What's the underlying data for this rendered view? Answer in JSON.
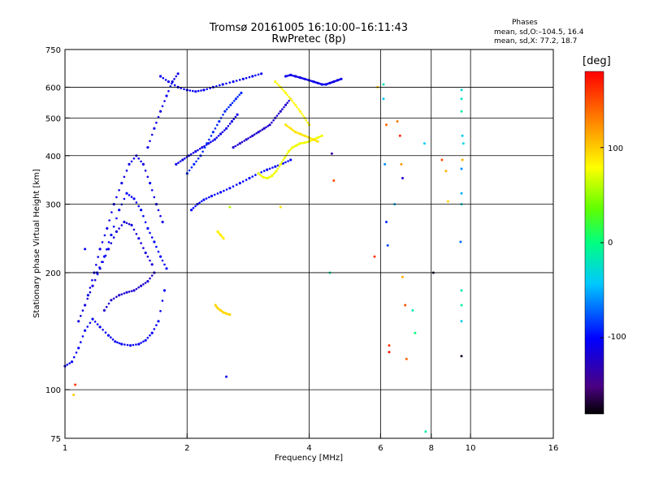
{
  "header": {
    "title_line1": "Tromsø 20161005 16:10:00–16:11:43",
    "title_line2": "RwPretec (8p)"
  },
  "phases": {
    "title": "Phases",
    "line_o": "mean, sd,O:–104.5, 16.4",
    "line_x": "mean, sd,X:  77.2, 18.7"
  },
  "colorbar": {
    "label": "[deg]",
    "ticks": [
      "100",
      "0",
      "-100"
    ],
    "tick_values": [
      100,
      0,
      -100
    ],
    "range": [
      -180,
      180
    ]
  },
  "chart_data": {
    "type": "scatter",
    "title": "Tromsø 20161005 16:10:00–16:11:43 RwPretec (8p)",
    "xlabel": "Frequency [MHz]",
    "ylabel": "Stationary phase Virtual Height [km]",
    "x_scale": "log",
    "y_scale": "log",
    "xlim": [
      1,
      16
    ],
    "ylim": [
      75,
      750
    ],
    "x_ticks": [
      1,
      2,
      4,
      6,
      8,
      10,
      16
    ],
    "x_tick_labels": [
      "1",
      "2",
      "4",
      "6",
      "8",
      "10",
      "16"
    ],
    "y_ticks": [
      75,
      100,
      200,
      300,
      400,
      500,
      600,
      750
    ],
    "y_tick_labels": [
      "75",
      "100",
      "200",
      "300",
      "400",
      "500",
      "600",
      "750"
    ],
    "grid": true,
    "grid_x": [
      2,
      4,
      6,
      8,
      10
    ],
    "grid_y": [
      100,
      200,
      300,
      400,
      500,
      600
    ],
    "color_by": "phase [deg]",
    "traces": [
      {
        "x": [
          1.0,
          1.04,
          1.08,
          1.12,
          1.17,
          1.22,
          1.28,
          1.33,
          1.38,
          1.45,
          1.52,
          1.58,
          1.64,
          1.7,
          1.76
        ],
        "y": [
          115,
          118,
          128,
          142,
          152,
          145,
          138,
          133,
          131,
          130,
          131,
          134,
          140,
          150,
          180
        ],
        "phase": -105
      },
      {
        "x": [
          1.08,
          1.12,
          1.17,
          1.22,
          1.28,
          1.34,
          1.4,
          1.46,
          1.52,
          1.58,
          1.64
        ],
        "y": [
          150,
          165,
          185,
          205,
          230,
          255,
          270,
          265,
          245,
          225,
          210
        ],
        "phase": -115
      },
      {
        "x": [
          1.14,
          1.18,
          1.22,
          1.27,
          1.32,
          1.38,
          1.44,
          1.5,
          1.56,
          1.62,
          1.68,
          1.74
        ],
        "y": [
          175,
          200,
          230,
          260,
          300,
          340,
          380,
          400,
          380,
          340,
          300,
          270
        ],
        "phase": -110
      },
      {
        "x": [
          1.2,
          1.25,
          1.3,
          1.36,
          1.42,
          1.48,
          1.54,
          1.6,
          1.66,
          1.72,
          1.78
        ],
        "y": [
          200,
          220,
          250,
          290,
          320,
          310,
          290,
          260,
          240,
          220,
          205
        ],
        "phase": -100
      },
      {
        "x": [
          1.25,
          1.3,
          1.36,
          1.42,
          1.48,
          1.54,
          1.6,
          1.66
        ],
        "y": [
          160,
          170,
          175,
          178,
          180,
          185,
          190,
          200
        ],
        "phase": -120
      },
      {
        "x": [
          1.6,
          1.66,
          1.72,
          1.78,
          1.84,
          1.9
        ],
        "y": [
          420,
          470,
          520,
          570,
          620,
          650
        ],
        "phase": -110
      },
      {
        "x": [
          1.72,
          1.8,
          1.9,
          2.0,
          2.1,
          2.2,
          2.32,
          2.45,
          2.6,
          2.75,
          2.9,
          3.05
        ],
        "y": [
          640,
          620,
          600,
          590,
          585,
          590,
          600,
          610,
          620,
          630,
          640,
          650
        ],
        "phase": -105
      },
      {
        "x": [
          2.05,
          2.12,
          2.2,
          2.3,
          2.42,
          2.55,
          2.7,
          2.85,
          3.0,
          3.15,
          3.3,
          3.45,
          3.6
        ],
        "y": [
          290,
          300,
          308,
          315,
          322,
          330,
          340,
          350,
          360,
          368,
          375,
          382,
          390
        ],
        "phase": -100
      },
      {
        "x": [
          1.88,
          1.95,
          2.02,
          2.1,
          2.18,
          2.26,
          2.34,
          2.42,
          2.5,
          2.58,
          2.66
        ],
        "y": [
          380,
          390,
          400,
          410,
          420,
          430,
          440,
          455,
          470,
          490,
          510
        ],
        "phase": -110
      },
      {
        "x": [
          2.0,
          2.08,
          2.16,
          2.24,
          2.32,
          2.4,
          2.48,
          2.56,
          2.64,
          2.72
        ],
        "y": [
          360,
          380,
          400,
          430,
          460,
          490,
          520,
          540,
          560,
          580
        ],
        "phase": -90
      },
      {
        "x": [
          2.6,
          2.7,
          2.8,
          2.9,
          3.0,
          3.1,
          3.2,
          3.3,
          3.4,
          3.5,
          3.6
        ],
        "y": [
          420,
          430,
          440,
          450,
          460,
          470,
          480,
          500,
          520,
          540,
          560
        ],
        "phase": -120
      },
      {
        "x": [
          3.0,
          3.08,
          3.16,
          3.24,
          3.32,
          3.4,
          3.48,
          3.56,
          3.64,
          3.72,
          3.8,
          3.9,
          4.0,
          4.1,
          4.2,
          4.3
        ],
        "y": [
          360,
          352,
          350,
          355,
          365,
          380,
          395,
          410,
          420,
          425,
          430,
          432,
          435,
          440,
          445,
          450
        ],
        "phase": 75
      },
      {
        "x": [
          3.3,
          3.4,
          3.5,
          3.6,
          3.7,
          3.8,
          3.9,
          4.0
        ],
        "y": [
          620,
          600,
          580,
          560,
          540,
          520,
          500,
          480
        ],
        "phase": 80
      },
      {
        "x": [
          3.5,
          3.6,
          3.7,
          3.8,
          3.9,
          4.0,
          4.1,
          4.2
        ],
        "y": [
          480,
          470,
          460,
          455,
          450,
          445,
          440,
          435
        ],
        "phase": 90
      },
      {
        "x": [
          3.5,
          3.6,
          3.7,
          3.8,
          3.9,
          4.0,
          4.1,
          4.2,
          4.3,
          4.4,
          4.5,
          4.6,
          4.7,
          4.8
        ],
        "y": [
          640,
          645,
          640,
          635,
          630,
          625,
          620,
          615,
          610,
          610,
          615,
          620,
          625,
          630
        ],
        "phase": -110
      },
      {
        "x": [
          2.35,
          2.38,
          2.42,
          2.46,
          2.5,
          2.55
        ],
        "y": [
          165,
          162,
          160,
          158,
          157,
          156
        ],
        "phase": 95
      },
      {
        "x": [
          2.38,
          2.42,
          2.46
        ],
        "y": [
          255,
          250,
          245
        ],
        "phase": 85
      }
    ],
    "points": [
      {
        "x": 1.05,
        "y": 97,
        "phase": 100
      },
      {
        "x": 1.06,
        "y": 103,
        "phase": 160
      },
      {
        "x": 1.12,
        "y": 230,
        "phase": -105
      },
      {
        "x": 2.5,
        "y": 108,
        "phase": -110
      },
      {
        "x": 2.55,
        "y": 295,
        "phase": 60
      },
      {
        "x": 3.4,
        "y": 295,
        "phase": 90
      },
      {
        "x": 4.5,
        "y": 200,
        "phase": -10
      },
      {
        "x": 4.6,
        "y": 345,
        "phase": 150
      },
      {
        "x": 4.55,
        "y": 405,
        "phase": -140
      },
      {
        "x": 5.8,
        "y": 220,
        "phase": 160
      },
      {
        "x": 5.9,
        "y": 600,
        "phase": 100
      },
      {
        "x": 6.1,
        "y": 610,
        "phase": -20
      },
      {
        "x": 6.1,
        "y": 560,
        "phase": -40
      },
      {
        "x": 6.2,
        "y": 480,
        "phase": 140
      },
      {
        "x": 6.15,
        "y": 380,
        "phase": -60
      },
      {
        "x": 6.2,
        "y": 270,
        "phase": -90
      },
      {
        "x": 6.25,
        "y": 235,
        "phase": -80
      },
      {
        "x": 6.3,
        "y": 130,
        "phase": 160
      },
      {
        "x": 6.3,
        "y": 125,
        "phase": 170
      },
      {
        "x": 6.5,
        "y": 300,
        "phase": -50
      },
      {
        "x": 6.6,
        "y": 490,
        "phase": 130
      },
      {
        "x": 6.7,
        "y": 450,
        "phase": 165
      },
      {
        "x": 6.75,
        "y": 380,
        "phase": 120
      },
      {
        "x": 6.8,
        "y": 350,
        "phase": -120
      },
      {
        "x": 6.8,
        "y": 195,
        "phase": 110
      },
      {
        "x": 6.9,
        "y": 165,
        "phase": 150
      },
      {
        "x": 6.95,
        "y": 120,
        "phase": 140
      },
      {
        "x": 7.2,
        "y": 160,
        "phase": -20
      },
      {
        "x": 7.3,
        "y": 140,
        "phase": 0
      },
      {
        "x": 7.7,
        "y": 430,
        "phase": -40
      },
      {
        "x": 7.75,
        "y": 78,
        "phase": -10
      },
      {
        "x": 8.1,
        "y": 200,
        "phase": -170
      },
      {
        "x": 8.5,
        "y": 390,
        "phase": 150
      },
      {
        "x": 8.7,
        "y": 365,
        "phase": 110
      },
      {
        "x": 8.8,
        "y": 305,
        "phase": 95
      },
      {
        "x": 9.5,
        "y": 590,
        "phase": -30
      },
      {
        "x": 9.5,
        "y": 560,
        "phase": -20
      },
      {
        "x": 9.5,
        "y": 520,
        "phase": -10
      },
      {
        "x": 9.55,
        "y": 450,
        "phase": -40
      },
      {
        "x": 9.6,
        "y": 430,
        "phase": -30
      },
      {
        "x": 9.55,
        "y": 390,
        "phase": 110
      },
      {
        "x": 9.5,
        "y": 370,
        "phase": -60
      },
      {
        "x": 9.5,
        "y": 320,
        "phase": -50
      },
      {
        "x": 9.5,
        "y": 300,
        "phase": -30
      },
      {
        "x": 9.45,
        "y": 240,
        "phase": -70
      },
      {
        "x": 9.5,
        "y": 180,
        "phase": -20
      },
      {
        "x": 9.5,
        "y": 165,
        "phase": -10
      },
      {
        "x": 9.5,
        "y": 150,
        "phase": -40
      },
      {
        "x": 9.5,
        "y": 122,
        "phase": -170
      }
    ]
  }
}
